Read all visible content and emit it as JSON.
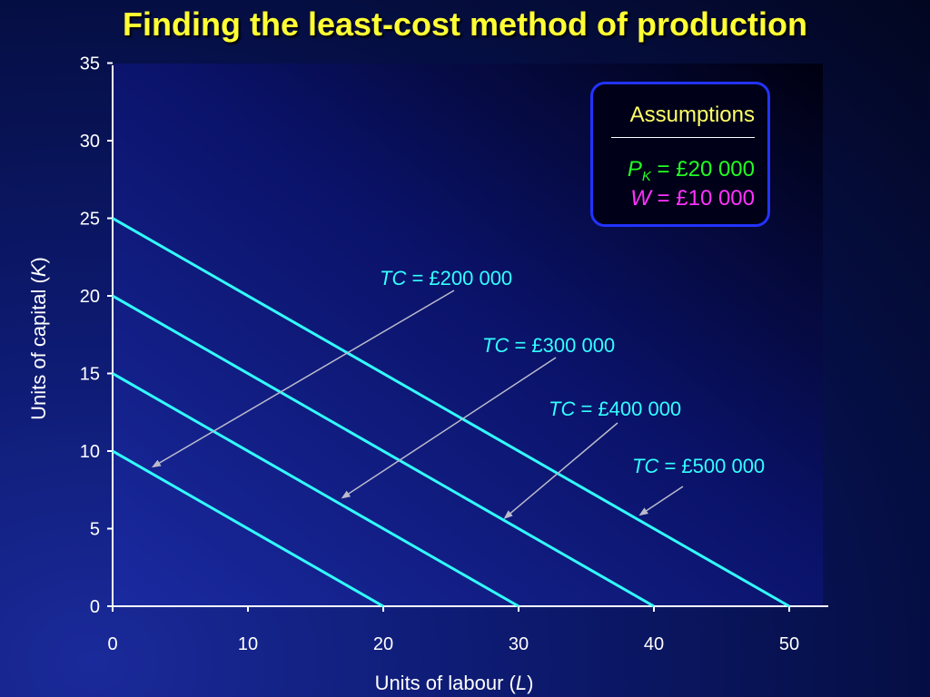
{
  "title": "Finding the least-cost method of production",
  "chart_data": {
    "type": "line",
    "xlabel_prefix": "Units of labour (",
    "xlabel_var": "L",
    "xlabel_suffix": ")",
    "ylabel_prefix": "Units of capital (",
    "ylabel_var": "K",
    "ylabel_suffix": ")",
    "xlim": [
      0,
      52.5
    ],
    "ylim": [
      0,
      35
    ],
    "x_ticks": [
      0,
      10,
      20,
      30,
      40,
      50
    ],
    "y_ticks": [
      0,
      5,
      10,
      15,
      20,
      25,
      30,
      35
    ],
    "grid": false,
    "series": [
      {
        "name": "TC = £200 000",
        "var": "TC",
        "value_text": " = £200 000",
        "x": [
          0,
          20
        ],
        "y": [
          10,
          0
        ],
        "arrow_to": [
          3,
          9
        ]
      },
      {
        "name": "TC = £300 000",
        "var": "TC",
        "value_text": " = £300 000",
        "x": [
          0,
          30
        ],
        "y": [
          15,
          0
        ],
        "arrow_to": [
          17,
          7
        ]
      },
      {
        "name": "TC = £400 000",
        "var": "TC",
        "value_text": " = £400 000",
        "x": [
          0,
          40
        ],
        "y": [
          20,
          0
        ],
        "arrow_to": [
          29,
          5.7
        ]
      },
      {
        "name": "TC = £500 000",
        "var": "TC",
        "value_text": " = £500 000",
        "x": [
          0,
          50
        ],
        "y": [
          25,
          0
        ],
        "arrow_to": [
          39,
          5.9
        ]
      }
    ],
    "colors": {
      "line": "#33ffff",
      "arrow": "#bbbbcc",
      "axis": "#ffffff"
    }
  },
  "assumptions": {
    "title": "Assumptions",
    "pk_var": "P",
    "pk_sub": "K",
    "pk_value": " = £20 000",
    "w_var": "W",
    "w_value": " = £10 000"
  }
}
